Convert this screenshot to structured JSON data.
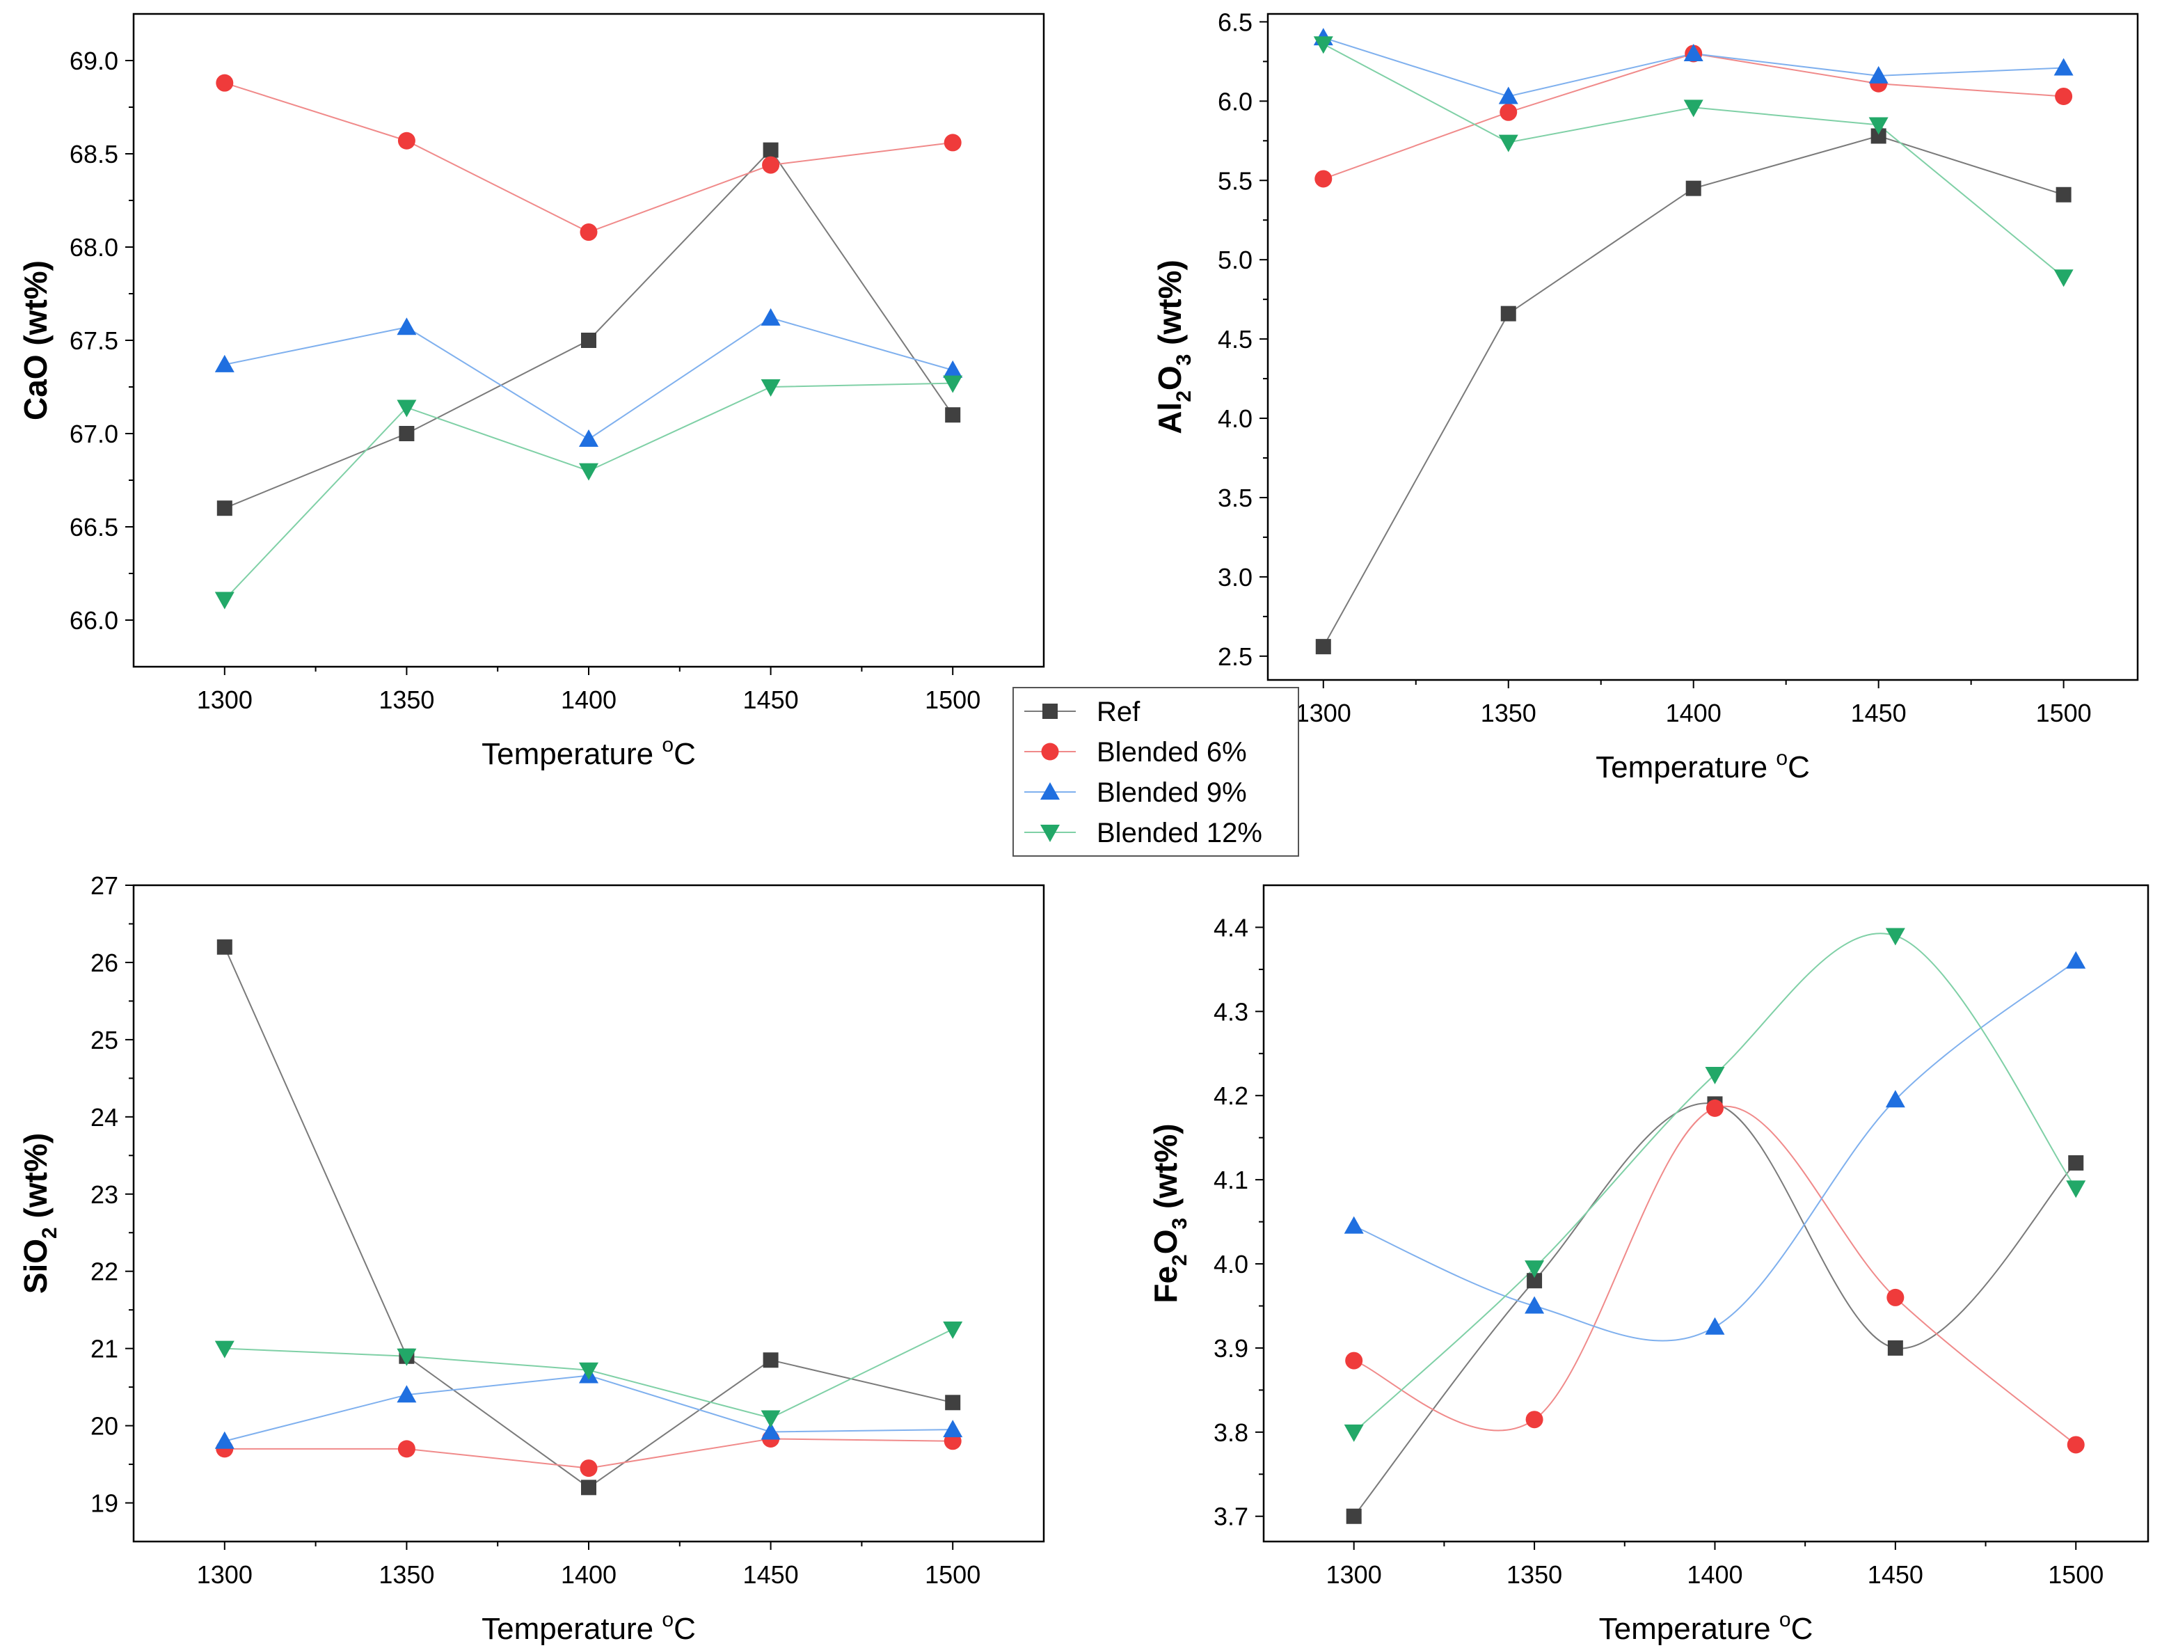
{
  "figure": {
    "legend": {
      "entries": [
        {
          "name": "Ref",
          "color": "#404040",
          "marker": "square"
        },
        {
          "name": "Blended 6%",
          "color": "#ef3b3b",
          "marker": "circle"
        },
        {
          "name": "Blended 9%",
          "color": "#1f6fe0",
          "marker": "triangle-up"
        },
        {
          "name": "Blended 12%",
          "color": "#22a868",
          "marker": "triangle-down"
        }
      ]
    },
    "line_colors": {
      "Ref": "#7a7a7a",
      "Blended 6%": "#f08a8a",
      "Blended 9%": "#7fb0ee",
      "Blended 12%": "#7fd0a6"
    }
  },
  "chart_data": [
    {
      "id": "cao",
      "type": "line",
      "title": "",
      "xlabel_text": "Temperature ",
      "xlabel_sup": "o",
      "xlabel_tail": "C",
      "ylabel": [
        {
          "t": "CaO (wt%)",
          "s": ""
        }
      ],
      "x": [
        1300,
        1350,
        1400,
        1450,
        1500
      ],
      "xticks": [
        1300,
        1350,
        1400,
        1450,
        1500
      ],
      "xlim": [
        1275,
        1525
      ],
      "ylim": [
        65.75,
        69.25
      ],
      "yticks": [
        66.0,
        66.5,
        67.0,
        67.5,
        68.0,
        68.5,
        69.0
      ],
      "ydecimals": 1,
      "smooth": false,
      "series": [
        {
          "name": "Ref",
          "values": [
            66.6,
            67.0,
            67.5,
            68.52,
            67.1
          ]
        },
        {
          "name": "Blended 6%",
          "values": [
            68.88,
            68.57,
            68.08,
            68.44,
            68.56
          ]
        },
        {
          "name": "Blended 9%",
          "values": [
            67.37,
            67.57,
            66.97,
            67.62,
            67.34
          ]
        },
        {
          "name": "Blended 12%",
          "values": [
            66.11,
            67.14,
            66.8,
            67.25,
            67.27
          ]
        }
      ]
    },
    {
      "id": "al2o3",
      "type": "line",
      "title": "",
      "xlabel_text": "Temperature ",
      "xlabel_sup": "o",
      "xlabel_tail": "C",
      "ylabel": [
        {
          "t": "Al",
          "s": ""
        },
        {
          "t": "",
          "s": "2"
        },
        {
          "t": "O",
          "s": ""
        },
        {
          "t": "",
          "s": "3"
        },
        {
          "t": " (wt%)",
          "s": ""
        }
      ],
      "x": [
        1300,
        1350,
        1400,
        1450,
        1500
      ],
      "xticks": [
        1300,
        1350,
        1400,
        1450,
        1500
      ],
      "xlim": [
        1285,
        1520
      ],
      "ylim": [
        2.35,
        6.55
      ],
      "yticks": [
        2.5,
        3.0,
        3.5,
        4.0,
        4.5,
        5.0,
        5.5,
        6.0,
        6.5
      ],
      "ydecimals": 1,
      "smooth": false,
      "series": [
        {
          "name": "Ref",
          "values": [
            2.56,
            4.66,
            5.45,
            5.78,
            5.41
          ]
        },
        {
          "name": "Blended 6%",
          "values": [
            5.51,
            5.93,
            6.3,
            6.11,
            6.03
          ]
        },
        {
          "name": "Blended 9%",
          "values": [
            6.4,
            6.03,
            6.3,
            6.16,
            6.21
          ]
        },
        {
          "name": "Blended 12%",
          "values": [
            6.36,
            5.74,
            5.96,
            5.85,
            4.89
          ]
        }
      ]
    },
    {
      "id": "sio2",
      "type": "line",
      "title": "",
      "xlabel_text": "Temperature ",
      "xlabel_sup": "o",
      "xlabel_tail": "C",
      "ylabel": [
        {
          "t": "SiO",
          "s": ""
        },
        {
          "t": "",
          "s": "2"
        },
        {
          "t": " (wt%)",
          "s": ""
        }
      ],
      "x": [
        1300,
        1350,
        1400,
        1450,
        1500
      ],
      "xticks": [
        1300,
        1350,
        1400,
        1450,
        1500
      ],
      "xlim": [
        1275,
        1525
      ],
      "ylim": [
        18.5,
        27.0
      ],
      "yticks": [
        19,
        20,
        21,
        22,
        23,
        24,
        25,
        26,
        27
      ],
      "ydecimals": 0,
      "smooth": false,
      "series": [
        {
          "name": "Ref",
          "values": [
            26.2,
            20.9,
            19.2,
            20.85,
            20.3
          ]
        },
        {
          "name": "Blended 6%",
          "values": [
            19.7,
            19.7,
            19.45,
            19.83,
            19.8
          ]
        },
        {
          "name": "Blended 9%",
          "values": [
            19.8,
            20.4,
            20.65,
            19.92,
            19.95
          ]
        },
        {
          "name": "Blended 12%",
          "values": [
            21.0,
            20.9,
            20.72,
            20.1,
            21.25
          ]
        }
      ]
    },
    {
      "id": "fe2o3",
      "type": "line",
      "title": "",
      "xlabel_text": "Temperature ",
      "xlabel_sup": "o",
      "xlabel_tail": "C",
      "ylabel": [
        {
          "t": "Fe",
          "s": ""
        },
        {
          "t": "",
          "s": "2"
        },
        {
          "t": "O",
          "s": ""
        },
        {
          "t": "",
          "s": "3"
        },
        {
          "t": " (wt%)",
          "s": ""
        }
      ],
      "x": [
        1300,
        1350,
        1400,
        1450,
        1500
      ],
      "xticks": [
        1300,
        1350,
        1400,
        1450,
        1500
      ],
      "xlim": [
        1275,
        1520
      ],
      "ylim": [
        3.67,
        4.45
      ],
      "yticks": [
        3.7,
        3.8,
        3.9,
        4.0,
        4.1,
        4.2,
        4.3,
        4.4
      ],
      "ydecimals": 1,
      "smooth": true,
      "series": [
        {
          "name": "Ref",
          "values": [
            3.7,
            3.98,
            4.19,
            3.9,
            4.12
          ]
        },
        {
          "name": "Blended 6%",
          "values": [
            3.885,
            3.815,
            4.185,
            3.96,
            3.785
          ]
        },
        {
          "name": "Blended 9%",
          "values": [
            4.045,
            3.95,
            3.925,
            4.195,
            4.36
          ]
        },
        {
          "name": "Blended 12%",
          "values": [
            3.8,
            3.995,
            4.225,
            4.39,
            4.09
          ]
        }
      ]
    }
  ]
}
